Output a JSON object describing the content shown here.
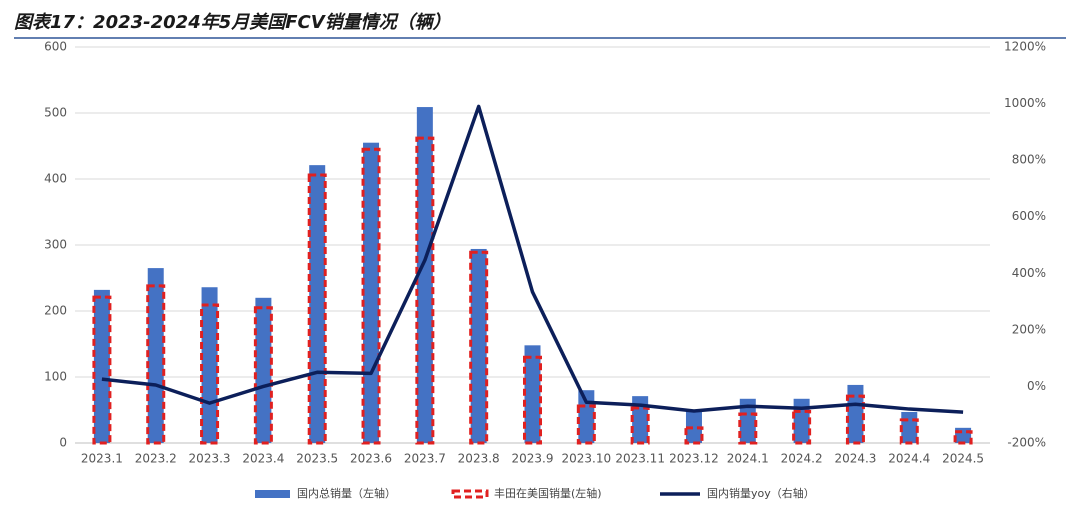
{
  "chart_data": {
    "type": "bar_line",
    "title": "图表17：2023-2024年5月美国FCV销量情况（辆）",
    "categories": [
      "2023.1",
      "2023.2",
      "2023.3",
      "2023.4",
      "2023.5",
      "2023.6",
      "2023.7",
      "2023.8",
      "2023.9",
      "2023.10",
      "2023.11",
      "2023.12",
      "2024.1",
      "2024.2",
      "2024.3",
      "2024.4",
      "2024.5"
    ],
    "series": [
      {
        "name": "国内总销量（左轴）",
        "color": "#4472c4",
        "type": "bar",
        "values": [
          232,
          265,
          236,
          220,
          421,
          455,
          509,
          294,
          148,
          80,
          71,
          50,
          67,
          67,
          88,
          47,
          23
        ]
      },
      {
        "name": "丰田在美国销量(左轴)",
        "color": "#e02020",
        "type": "dashed-bar",
        "values": [
          221,
          238,
          209,
          205,
          406,
          445,
          462,
          289,
          130,
          56,
          53,
          23,
          44,
          48,
          71,
          35,
          17
        ]
      },
      {
        "name": "国内销量yoy（右轴）",
        "color": "#0c1f5a",
        "type": "line",
        "axis": "y2",
        "values": [
          26,
          5,
          -59,
          0,
          50,
          46,
          446,
          990,
          334,
          -56,
          -66,
          -87,
          -70,
          -77,
          -63,
          -80,
          -91
        ]
      }
    ],
    "ylim": [
      0,
      600
    ],
    "yticks": [
      0,
      100,
      200,
      300,
      400,
      500,
      600
    ],
    "y2lim": [
      -200,
      1200
    ],
    "y2ticks": [
      {
        "value": -200,
        "label": "-200%"
      },
      {
        "value": 0,
        "label": "0%"
      },
      {
        "value": 200,
        "label": "200%"
      },
      {
        "value": 400,
        "label": "400%"
      },
      {
        "value": 600,
        "label": "600%"
      },
      {
        "value": 800,
        "label": "800%"
      },
      {
        "value": 1000,
        "label": "1000%"
      },
      {
        "value": 1200,
        "label": "1200%"
      }
    ],
    "grid": true
  }
}
